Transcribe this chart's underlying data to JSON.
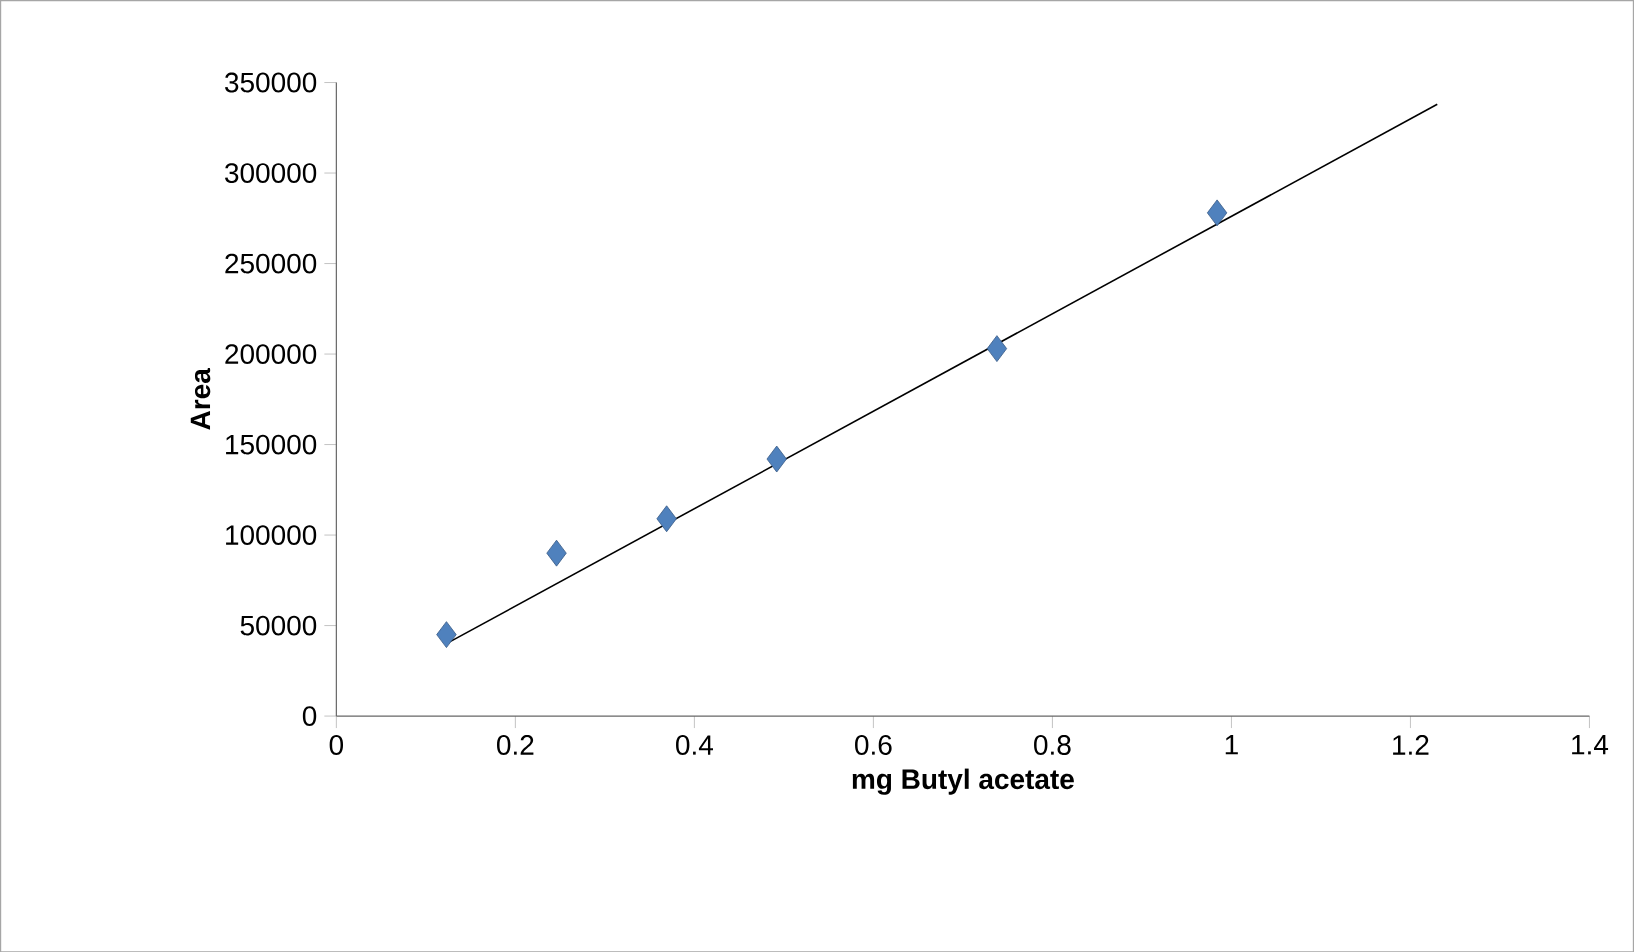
{
  "chart_data": {
    "type": "scatter",
    "xlabel": "mg Butyl acetate",
    "ylabel": "Area",
    "xlim": [
      0,
      1.4
    ],
    "ylim": [
      0,
      350000
    ],
    "xticks": [
      0,
      0.2,
      0.4,
      0.6,
      0.8,
      1,
      1.2,
      1.4
    ],
    "yticks": [
      0,
      50000,
      100000,
      150000,
      200000,
      250000,
      300000,
      350000
    ],
    "grid": false,
    "series": [
      {
        "color": "#4f81bd",
        "marker": "diamond",
        "x": [
          0.123,
          0.246,
          0.369,
          0.492,
          0.738,
          0.984
        ],
        "values": [
          45000,
          90000,
          109000,
          142000,
          203000,
          278000
        ]
      },
      {
        "type": "line",
        "color": "#000000",
        "marker": "none",
        "x": [
          0.123,
          1.23
        ],
        "values": [
          40000,
          338000
        ]
      }
    ]
  }
}
